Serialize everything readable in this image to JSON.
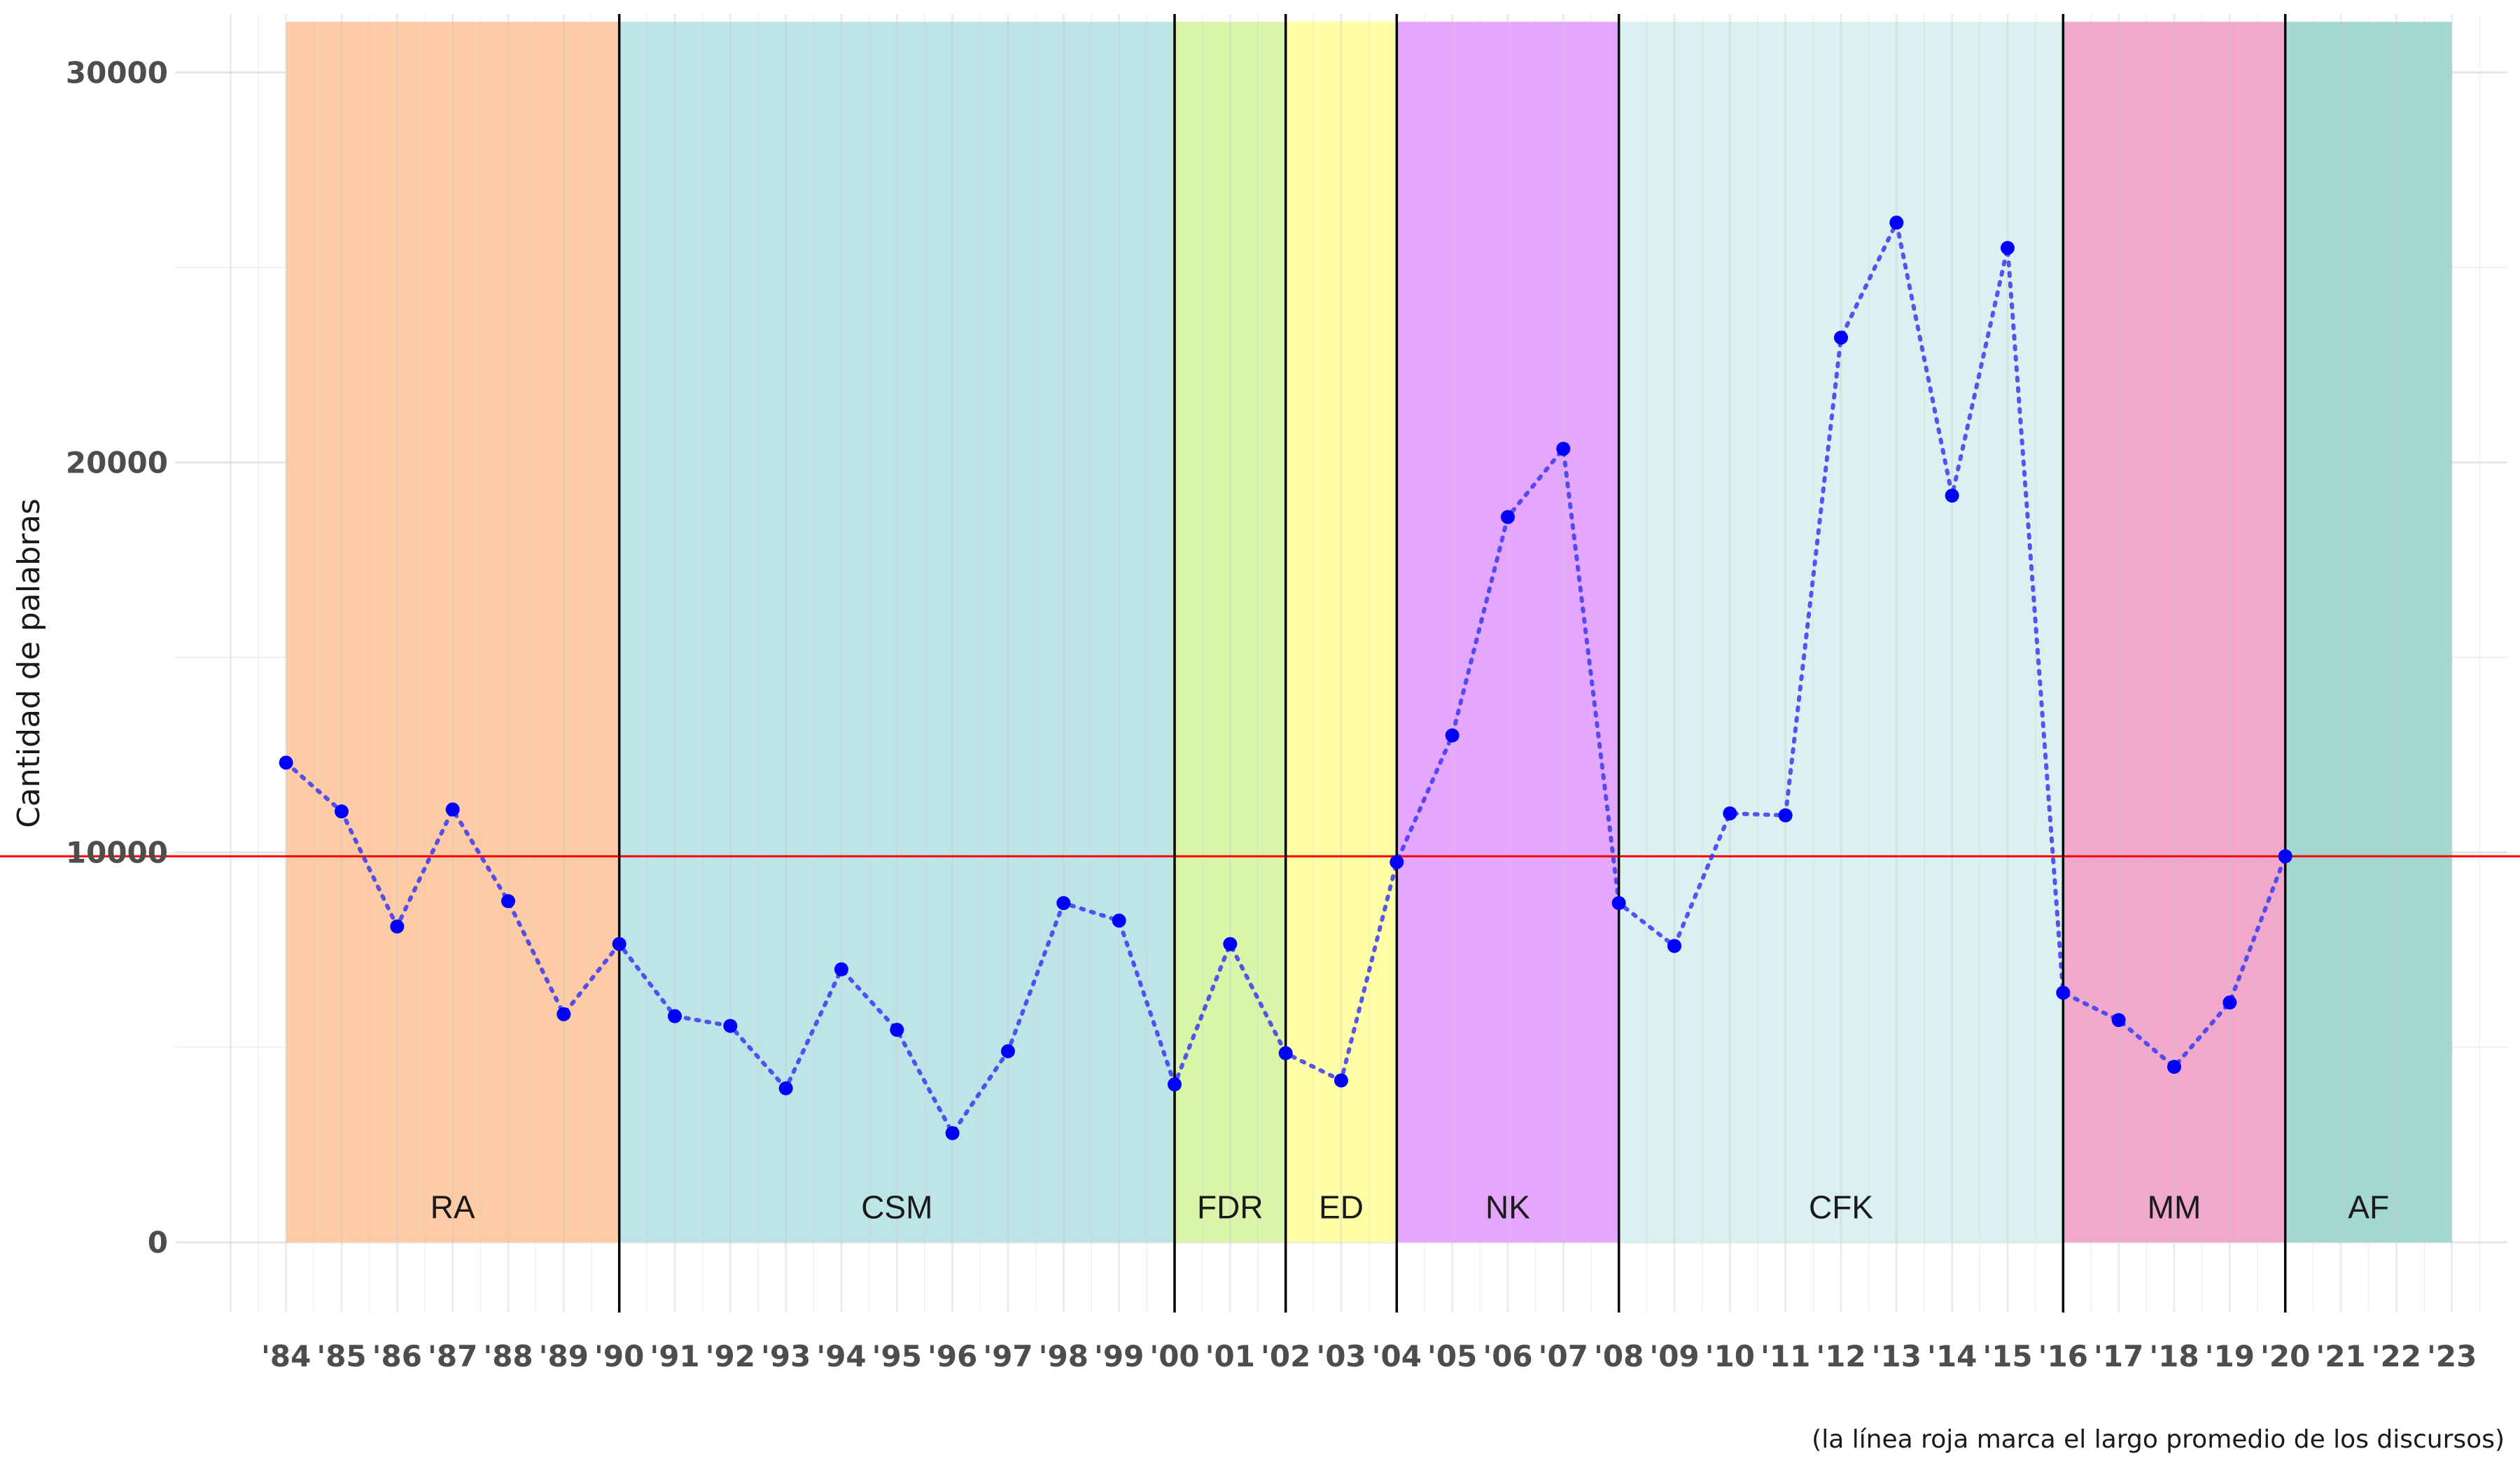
{
  "chart_data": {
    "type": "line",
    "title": "",
    "ylabel": "Cantidad de palabras",
    "xlabel": "",
    "caption": "(la línea roja marca el largo promedio de los discursos)",
    "ylim": [
      -1800,
      31500
    ],
    "xlim": [
      1982,
      2024
    ],
    "yticks": [
      0,
      10000,
      20000,
      30000
    ],
    "ytick_labels": [
      "0",
      "10000",
      "20000",
      "30000"
    ],
    "xticks": [
      1984,
      1985,
      1986,
      1987,
      1988,
      1989,
      1990,
      1991,
      1992,
      1993,
      1994,
      1995,
      1996,
      1997,
      1998,
      1999,
      2000,
      2001,
      2002,
      2003,
      2004,
      2005,
      2006,
      2007,
      2008,
      2009,
      2010,
      2011,
      2012,
      2013,
      2014,
      2015,
      2016,
      2017,
      2018,
      2019,
      2020,
      2021,
      2022,
      2023
    ],
    "xtick_labels": [
      "'84",
      "'85",
      "'86",
      "'87",
      "'88",
      "'89",
      "'90",
      "'91",
      "'92",
      "'93",
      "'94",
      "'95",
      "'96",
      "'97",
      "'98",
      "'99",
      "'00",
      "'01",
      "'02",
      "'03",
      "'04",
      "'05",
      "'06",
      "'07",
      "'08",
      "'09",
      "'10",
      "'11",
      "'12",
      "'13",
      "'14",
      "'15",
      "'16",
      "'17",
      "'18",
      "'19",
      "'20",
      "'21",
      "'22",
      "'23"
    ],
    "average_line": {
      "value": 9900,
      "color": "#ff0000"
    },
    "series": [
      {
        "name": "Cantidad de palabras",
        "color": "#0000ff",
        "line_color": "#3a3af0",
        "x": [
          1984,
          1985,
          1986,
          1987,
          1988,
          1989,
          1990,
          1991,
          1992,
          1993,
          1994,
          1995,
          1996,
          1997,
          1998,
          1999,
          2000,
          2001,
          2002,
          2003,
          2004,
          2005,
          2006,
          2007,
          2008,
          2009,
          2010,
          2011,
          2012,
          2013,
          2014,
          2015,
          2016,
          2017,
          2018,
          2019,
          2020
        ],
        "values": [
          12300,
          11050,
          8100,
          11100,
          8750,
          5850,
          7650,
          5800,
          5550,
          3950,
          7000,
          5450,
          2800,
          4900,
          8700,
          8250,
          4050,
          7650,
          4850,
          4150,
          9750,
          13000,
          18600,
          20350,
          8700,
          7600,
          11000,
          10950,
          23200,
          26150,
          19150,
          25500,
          6400,
          5700,
          4500,
          6150,
          9900
        ]
      }
    ],
    "periods": [
      {
        "label": "RA",
        "start": 1984,
        "end": 1990,
        "color": "#fdcba5"
      },
      {
        "label": "CSM",
        "start": 1990,
        "end": 2000,
        "color": "#bde5e8"
      },
      {
        "label": "FDR",
        "start": 2000,
        "end": 2002,
        "color": "#daf5aa"
      },
      {
        "label": "ED",
        "start": 2002,
        "end": 2004,
        "color": "#ffffa8"
      },
      {
        "label": "NK",
        "start": 2004,
        "end": 2008,
        "color": "#e5a6fd"
      },
      {
        "label": "CFK",
        "start": 2008,
        "end": 2016,
        "color": "#daf0f1"
      },
      {
        "label": "MM",
        "start": 2016,
        "end": 2020,
        "color": "#f0a9cc"
      },
      {
        "label": "AF",
        "start": 2020,
        "end": 2023,
        "color": "#a3d8d1"
      }
    ],
    "period_boundaries": [
      1990,
      2000,
      2002,
      2004,
      2008,
      2016,
      2020
    ],
    "label_y_value": 900,
    "grid": true
  }
}
